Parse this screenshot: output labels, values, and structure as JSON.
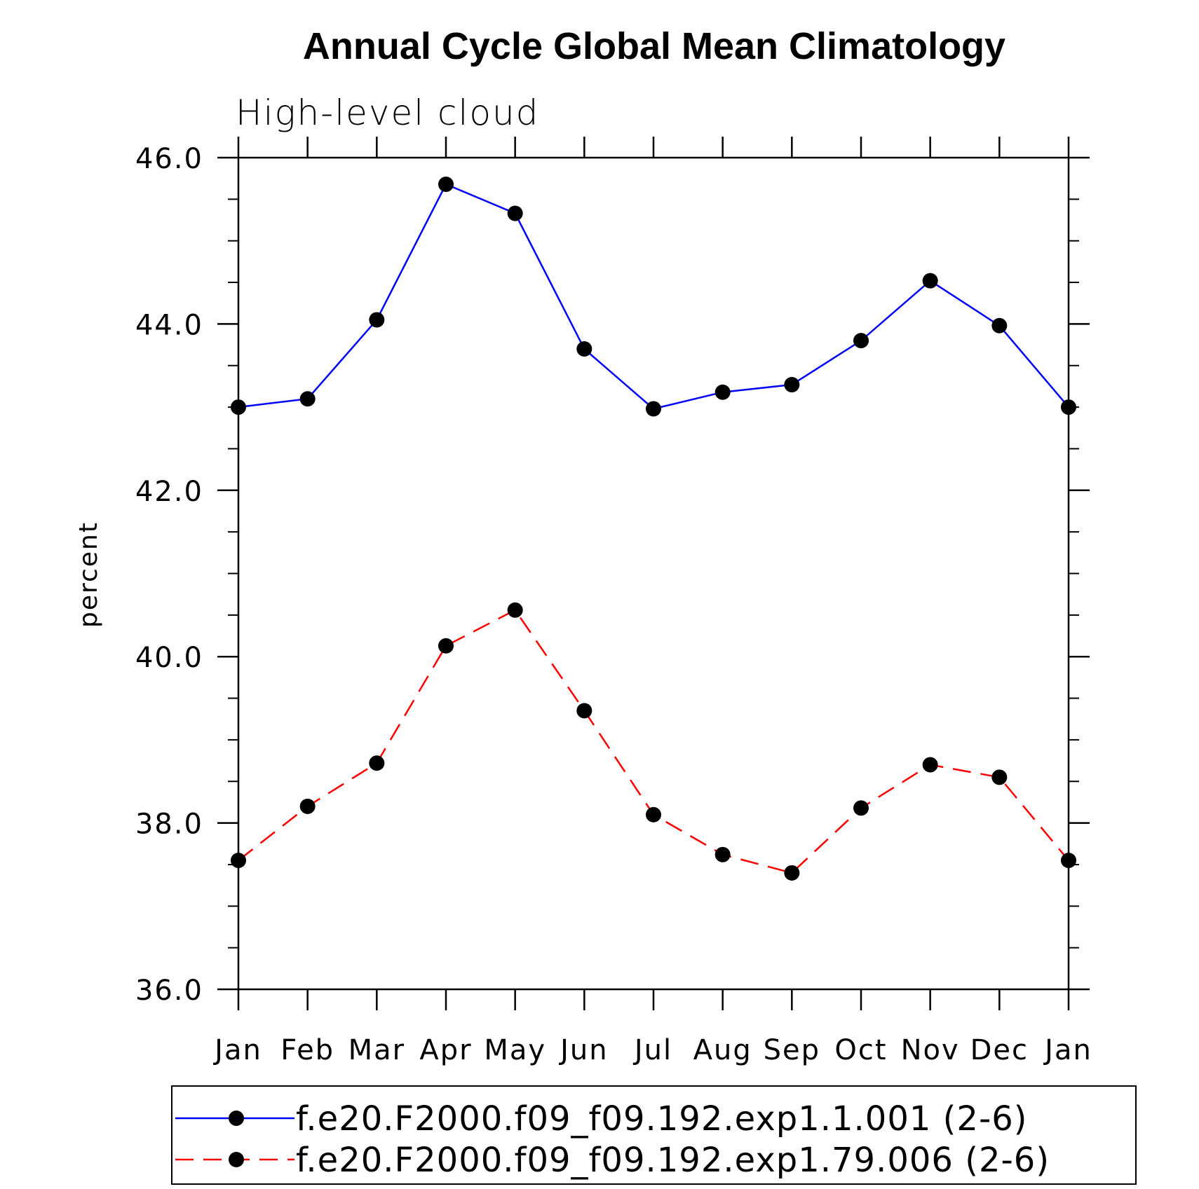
{
  "chart_data": {
    "type": "line",
    "title": "Annual Cycle Global Mean Climatology",
    "subtitle": "High-level cloud",
    "xlabel": "",
    "ylabel": "percent",
    "categories": [
      "Jan",
      "Feb",
      "Mar",
      "Apr",
      "May",
      "Jun",
      "Jul",
      "Aug",
      "Sep",
      "Oct",
      "Nov",
      "Dec",
      "Jan"
    ],
    "ylim": [
      36.0,
      46.0
    ],
    "yticks": [
      "36.0",
      "38.0",
      "40.0",
      "42.0",
      "44.0",
      "46.0"
    ],
    "yminor_step": 0.5,
    "grid": false,
    "legend_position": "bottom",
    "series": [
      {
        "name": "f.e20.F2000.f09_f09.192.exp1.1.001 (2-6)",
        "color": "#0000ff",
        "dash": "solid",
        "marker": "filled-circle",
        "values": [
          43.0,
          43.1,
          44.05,
          45.68,
          45.33,
          43.7,
          42.98,
          43.18,
          43.27,
          43.8,
          44.52,
          43.98,
          43.0
        ]
      },
      {
        "name": "f.e20.F2000.f09_f09.192.exp1.79.006 (2-6)",
        "color": "#ff0000",
        "dash": "dashed",
        "marker": "filled-circle",
        "values": [
          37.55,
          38.2,
          38.72,
          40.13,
          40.56,
          39.35,
          38.1,
          37.62,
          37.4,
          38.18,
          38.7,
          38.55,
          37.55
        ]
      }
    ]
  }
}
